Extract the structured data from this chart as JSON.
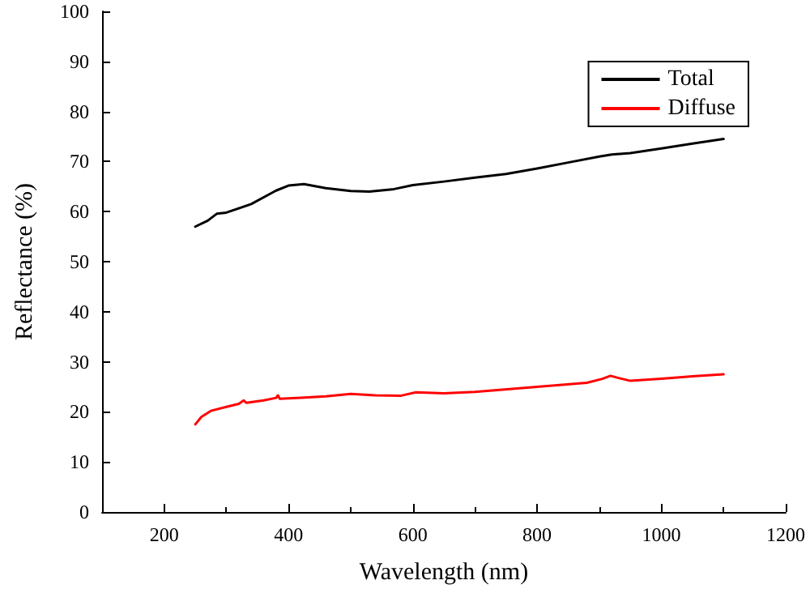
{
  "chart_data": {
    "type": "line",
    "xlabel": "Wavelength (nm)",
    "ylabel": "Reflectance (%)",
    "xlim": [
      100,
      1200
    ],
    "xticks": [
      200,
      400,
      600,
      800,
      1000,
      1200
    ],
    "ylim": [
      0,
      100
    ],
    "yticks": [
      0,
      10,
      20,
      30,
      40,
      50,
      60,
      70,
      80,
      90,
      100
    ],
    "grid": false,
    "legend": "top right",
    "marker": "none",
    "line_style": "solid",
    "series": [
      {
        "name": "Total",
        "color": "#000000",
        "x": [
          250,
          270,
          285,
          300,
          340,
          380,
          400,
          425,
          460,
          500,
          530,
          570,
          600,
          650,
          700,
          750,
          800,
          850,
          900,
          920,
          950,
          1000,
          1050,
          1100
        ],
        "values": [
          57,
          58.2,
          59.6,
          59.8,
          61.5,
          64.2,
          65.2,
          65.5,
          64.7,
          64.1,
          64,
          64.5,
          65.3,
          66,
          66.8,
          67.5,
          68.6,
          69.8,
          71,
          71.4,
          71.7,
          72.6,
          73.6,
          74.5
        ]
      },
      {
        "name": "Diffuse",
        "color": "#ff0000",
        "x": [
          250,
          260,
          275,
          300,
          320,
          328,
          332,
          360,
          380,
          383,
          386,
          420,
          460,
          500,
          540,
          580,
          605,
          650,
          700,
          800,
          880,
          905,
          918,
          930,
          950,
          1000,
          1050,
          1100
        ],
        "values": [
          17.5,
          19,
          20.2,
          21,
          21.6,
          22.3,
          21.8,
          22.3,
          22.8,
          23.3,
          22.6,
          22.8,
          23.1,
          23.6,
          23.3,
          23.2,
          23.9,
          23.7,
          24,
          25,
          25.8,
          26.6,
          27.2,
          26.8,
          26.2,
          26.6,
          27.1,
          27.5
        ]
      }
    ]
  }
}
